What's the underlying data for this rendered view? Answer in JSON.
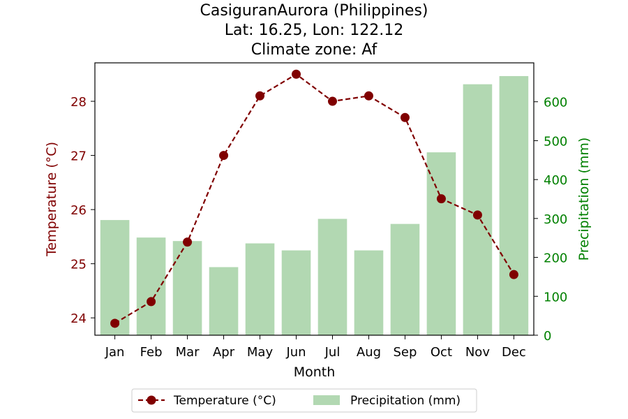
{
  "chart_data": {
    "type": "bar+line",
    "title_lines": [
      "CasiguranAurora (Philippines)",
      "Lat: 16.25, Lon: 122.12",
      "Climate zone: Af"
    ],
    "xlabel": "Month",
    "ylabel_left": "Temperature (°C)",
    "ylabel_right": "Precipitation (mm)",
    "categories": [
      "Jan",
      "Feb",
      "Mar",
      "Apr",
      "May",
      "Jun",
      "Jul",
      "Aug",
      "Sep",
      "Oct",
      "Nov",
      "Dec"
    ],
    "series": [
      {
        "name": "Temperature (°C)",
        "type": "line",
        "axis": "left",
        "style": "dashed",
        "marker": "circle",
        "color": "#800000",
        "values": [
          23.9,
          24.3,
          25.4,
          27.0,
          28.1,
          28.5,
          28.0,
          28.1,
          27.7,
          26.2,
          25.9,
          24.8
        ]
      },
      {
        "name": "Precipitation (mm)",
        "type": "bar",
        "axis": "right",
        "color": "#b2d8b2",
        "values": [
          296,
          251,
          242,
          175,
          236,
          218,
          299,
          218,
          286,
          470,
          645,
          666
        ]
      }
    ],
    "ylim_left": [
      23.68,
      28.71
    ],
    "yticks_left": [
      24,
      25,
      26,
      27,
      28
    ],
    "ylim_right": [
      0,
      700
    ],
    "yticks_right": [
      0,
      100,
      200,
      300,
      400,
      500,
      600
    ],
    "left_axis_color": "#800000",
    "right_axis_color": "#008000",
    "grid": false,
    "legend_position": "bottom-center"
  }
}
